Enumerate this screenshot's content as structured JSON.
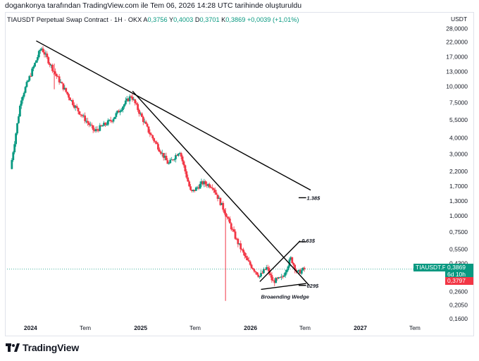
{
  "caption": "dogankonya tarafından TradingView.com ile Tem 06, 2026 14:28 UTC tarihinde oluşturuldu",
  "legend": {
    "symbol": "TIAUSDT Perpetual Swap Contract · 1H · OKX",
    "o_label": "A",
    "o": "0,3756",
    "h_label": "Y",
    "h": "0,4003",
    "l_label": "D",
    "l": "0,3701",
    "c_label": "K",
    "c": "0,3869",
    "change": "+0,0039 (+1,01%)"
  },
  "unit": "USDT",
  "price_tags": {
    "symbol_tag": "TIAUSDT.P",
    "last_price": "0,3869",
    "countdown": "6d 10h",
    "level_price": "0,3797"
  },
  "annotations": {
    "target_high": "1.38$",
    "target_mid": "0.63$",
    "target_low": "029$",
    "pattern": "Broaending Wedge"
  },
  "brand": {
    "name": "TradingView"
  },
  "colors": {
    "up": "#089981",
    "down": "#f23645",
    "trend": "#000000",
    "accent": "#2962ff"
  },
  "chart_data": {
    "type": "candlestick",
    "title": "",
    "y_scale": "log",
    "ylim": [
      0.145,
      30
    ],
    "y_ticks": [
      "28,0000",
      "22,0000",
      "17,0000",
      "13,0000",
      "10,0000",
      "7,5000",
      "5,5000",
      "4,0000",
      "3,0000",
      "2,2000",
      "1,7000",
      "1,3000",
      "1,0000",
      "0,7500",
      "0,5500",
      "0,4300",
      "0,3300",
      "0,2600",
      "0,2050",
      "0,1600"
    ],
    "y_tick_values": [
      28,
      22,
      17,
      13,
      10,
      7.5,
      5.5,
      4,
      3,
      2.2,
      1.7,
      1.3,
      1.0,
      0.75,
      0.55,
      0.43,
      0.33,
      0.26,
      0.205,
      0.16
    ],
    "x_ticks": [
      "2024",
      "Tem",
      "2025",
      "Tem",
      "2026",
      "Tem",
      "2027",
      "Tem"
    ],
    "x_tick_dates": [
      "2024-01-01",
      "2024-07-01",
      "2025-01-01",
      "2025-07-01",
      "2026-01-01",
      "2026-07-01",
      "2027-01-01",
      "2027-07-01"
    ],
    "x_tick_bold": [
      true,
      false,
      true,
      false,
      true,
      false,
      true,
      false
    ],
    "xlim": [
      "2023-10-15",
      "2027-10-10"
    ],
    "key_points": [
      {
        "date": "2023-10-31",
        "price": 2.3
      },
      {
        "date": "2023-12-05",
        "price": 8.0
      },
      {
        "date": "2024-02-10",
        "price": 20.0
      },
      {
        "date": "2024-04-01",
        "price": 12.0
      },
      {
        "date": "2024-06-01",
        "price": 7.0
      },
      {
        "date": "2024-08-05",
        "price": 4.5
      },
      {
        "date": "2024-10-01",
        "price": 5.5
      },
      {
        "date": "2024-12-05",
        "price": 8.5
      },
      {
        "date": "2025-02-01",
        "price": 4.5
      },
      {
        "date": "2025-04-08",
        "price": 2.5
      },
      {
        "date": "2025-05-15",
        "price": 3.2
      },
      {
        "date": "2025-06-22",
        "price": 1.5
      },
      {
        "date": "2025-07-30",
        "price": 1.8
      },
      {
        "date": "2025-09-01",
        "price": 1.7
      },
      {
        "date": "2025-10-10",
        "price": 1.1
      },
      {
        "date": "2025-11-20",
        "price": 0.65
      },
      {
        "date": "2025-12-25",
        "price": 0.45
      },
      {
        "date": "2026-02-05",
        "price": 0.34
      },
      {
        "date": "2026-03-01",
        "price": 0.4
      },
      {
        "date": "2026-03-20",
        "price": 0.31
      },
      {
        "date": "2026-04-20",
        "price": 0.33
      },
      {
        "date": "2026-05-20",
        "price": 0.47
      },
      {
        "date": "2026-06-10",
        "price": 0.36
      },
      {
        "date": "2026-07-03",
        "price": 0.3869
      }
    ],
    "spikes": [
      {
        "date": "2024-03-20",
        "low": 9.5,
        "high": 15
      },
      {
        "date": "2025-10-10",
        "low": 0.22,
        "high": 1.15
      }
    ],
    "trendlines": [
      {
        "from": {
          "date": "2024-01-20",
          "price": 22.5
        },
        "to": {
          "date": "2026-07-20",
          "price": 1.58
        }
      },
      {
        "from": {
          "date": "2024-12-05",
          "price": 9.2
        },
        "to": {
          "date": "2026-07-15",
          "price": 0.29
        }
      },
      {
        "from": {
          "date": "2026-02-01",
          "price": 0.31
        },
        "to": {
          "date": "2026-06-15",
          "price": 0.64
        }
      },
      {
        "from": {
          "date": "2026-02-05",
          "price": 0.27
        },
        "to": {
          "date": "2026-07-05",
          "price": 0.3
        }
      }
    ],
    "target_markers": [
      {
        "date_from": "2026-06-10",
        "date_to": "2026-07-05",
        "price": 1.38
      },
      {
        "date_from": "2026-06-10",
        "date_to": "2026-07-05",
        "price": 0.63
      },
      {
        "date_from": "2026-06-10",
        "date_to": "2026-07-05",
        "price": 0.29
      }
    ],
    "last_price": 0.3869,
    "level_price": 0.3797
  }
}
